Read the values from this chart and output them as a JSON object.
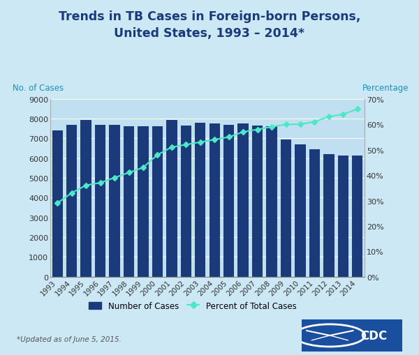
{
  "title": "Trends in TB Cases in Foreign-born Persons,\nUnited States, 1993 – 2014*",
  "ylabel_left": "No. of Cases",
  "ylabel_right": "Percentage",
  "footnote": "*Updated as of June 5, 2015.",
  "years": [
    1993,
    1994,
    1995,
    1996,
    1997,
    1998,
    1999,
    2000,
    2001,
    2002,
    2003,
    2004,
    2005,
    2006,
    2007,
    2008,
    2009,
    2010,
    2011,
    2012,
    2013,
    2014
  ],
  "cases": [
    7400,
    7700,
    7950,
    7700,
    7700,
    7600,
    7600,
    7600,
    7950,
    7650,
    7800,
    7750,
    7700,
    7750,
    7650,
    7600,
    6950,
    6700,
    6450,
    6200,
    6150,
    6150
  ],
  "percent": [
    29,
    33,
    36,
    37,
    39,
    41,
    43,
    48,
    51,
    52,
    53,
    54,
    55,
    57,
    58,
    59,
    60,
    60,
    61,
    63,
    64,
    66
  ],
  "bar_color": "#1a3a7a",
  "line_color": "#4de8c8",
  "bg_color": "#cce8f4",
  "plot_bg_color": "#c0dff0",
  "title_color": "#1a3a7a",
  "axis_label_color": "#1a8fc1",
  "ylim_left": [
    0,
    9000
  ],
  "ylim_right": [
    0,
    70
  ],
  "yticks_left": [
    0,
    1000,
    2000,
    3000,
    4000,
    5000,
    6000,
    7000,
    8000,
    9000
  ],
  "yticks_right": [
    0,
    10,
    20,
    30,
    40,
    50,
    60,
    70
  ],
  "legend_labels": [
    "Number of Cases",
    "Percent of Total Cases"
  ]
}
